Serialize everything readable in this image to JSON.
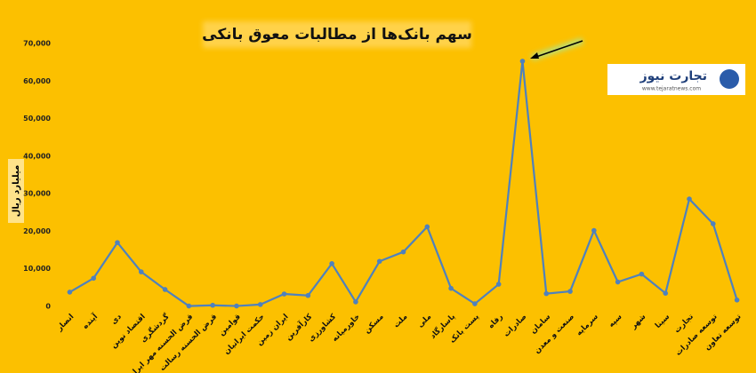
{
  "chart_data": {
    "type": "line",
    "title": "سهم بانک‌ها از مطالبات معوق بانکی",
    "y_label": "میلیارد ریال",
    "categories": [
      "انصار",
      "آینده",
      "دی",
      "اقتصاد نوین",
      "گردشگری",
      "قرض الحسنه مهر ایران",
      "قرض الحسنه رسالت",
      "قوامین",
      "حکمت ایرانیان",
      "ایران زمین",
      "کارآفرین",
      "کشاورزی",
      "خاورمیانه",
      "مسکن",
      "ملت",
      "ملی",
      "پاسارگاد",
      "پست بانک",
      "رفاه",
      "صادرات",
      "سامان",
      "صنعت و معدن",
      "سرمایه",
      "سپه",
      "شهر",
      "سینا",
      "تجارت",
      "توسعه صادرات",
      "توسعه تعاون"
    ],
    "values": [
      3800,
      7500,
      17000,
      9200,
      4500,
      100,
      300,
      100,
      500,
      3300,
      2900,
      11400,
      1200,
      12000,
      14500,
      21200,
      4800,
      700,
      5900,
      65300,
      3400,
      4000,
      20200,
      6500,
      8600,
      3500,
      28600,
      22000,
      1700
    ],
    "color": "#4f81bd",
    "ylim": [
      0,
      70000
    ],
    "yticks": [
      0,
      {
        "value": 10000,
        "label": "10,000"
      },
      {
        "value": 20000,
        "label": "20,000"
      },
      {
        "value": 30000,
        "label": "30,000"
      },
      {
        "value": 40000,
        "label": "40,000"
      },
      {
        "value": 50000,
        "label": "50,000"
      },
      {
        "value": 60000,
        "label": "60,000"
      },
      {
        "value": 70000,
        "label": "70,000"
      }
    ],
    "grid": false
  },
  "logo": {
    "name": "تجارت نیوز",
    "url": "www.tejaratnews.com"
  }
}
